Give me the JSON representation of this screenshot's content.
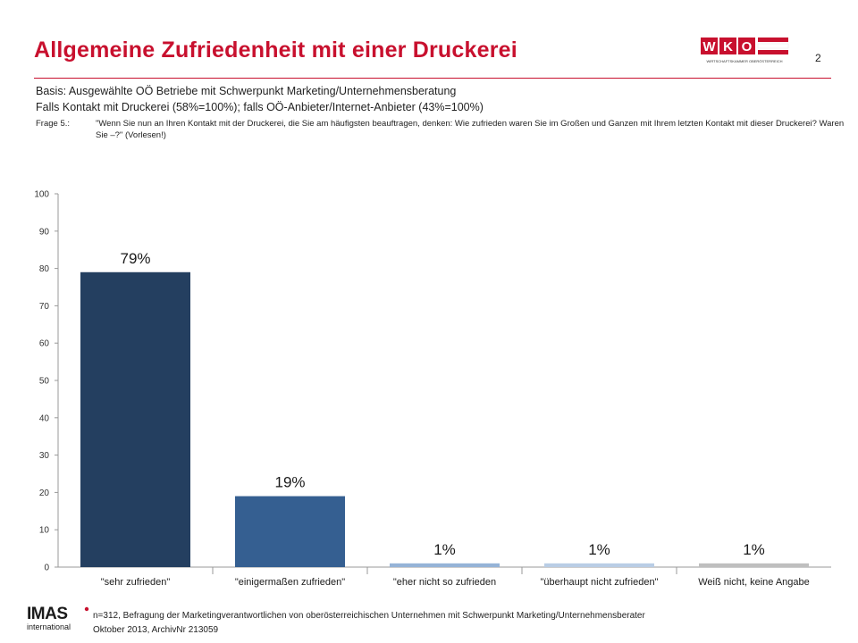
{
  "header": {
    "title": "Allgemeine Zufriedenheit mit einer Druckerei",
    "page_number": "2",
    "logo_text": "WKO",
    "logo_subtext": "WIRTSCHAFTSKAMMER OBERÖSTERREICH"
  },
  "basis": {
    "line1": "Basis: Ausgewählte OÖ Betriebe mit Schwerpunkt Marketing/Unternehmensberatung",
    "line2": "Falls Kontakt mit Druckerei (58%=100%); falls OÖ-Anbieter/Internet-Anbieter (43%=100%)"
  },
  "question": {
    "label": "Frage 5.:",
    "text": "\"Wenn Sie nun an Ihren Kontakt mit der Druckerei, die Sie am häufigsten beauftragen, denken: Wie zufrieden waren Sie im Großen und Ganzen mit Ihrem letzten Kontakt mit dieser Druckerei? Waren Sie –?\" (Vorlesen!)"
  },
  "chart_data": {
    "type": "bar",
    "categories": [
      "\"sehr zufrieden\"",
      "\"einigermaßen zufrieden\"",
      "\"eher nicht so zufrieden",
      "\"überhaupt nicht zufrieden\"",
      "Weiß nicht, keine Angabe"
    ],
    "values": [
      79,
      19,
      1,
      1,
      1
    ],
    "data_labels": [
      "79%",
      "19%",
      "1%",
      "1%",
      "1%"
    ],
    "ylim": [
      0,
      100
    ],
    "yticks": [
      "0",
      "10",
      "20",
      "30",
      "40",
      "50",
      "60",
      "70",
      "80",
      "90",
      "100"
    ],
    "bar_colors": [
      "#243f60",
      "#355f91",
      "#95b3d7",
      "#b9cde5",
      "#bfbfbf"
    ],
    "grid": false,
    "legend": "none"
  },
  "footer": {
    "logo_main": "IMAS",
    "logo_sub": "international",
    "line1": "n=312, Befragung der Marketingverantwortlichen von oberösterreichischen Unternehmen mit Schwerpunkt Marketing/Unternehmensberater",
    "line2": "Oktober 2013, ArchivNr 213059"
  },
  "colors": {
    "accent": "#c8102e"
  }
}
